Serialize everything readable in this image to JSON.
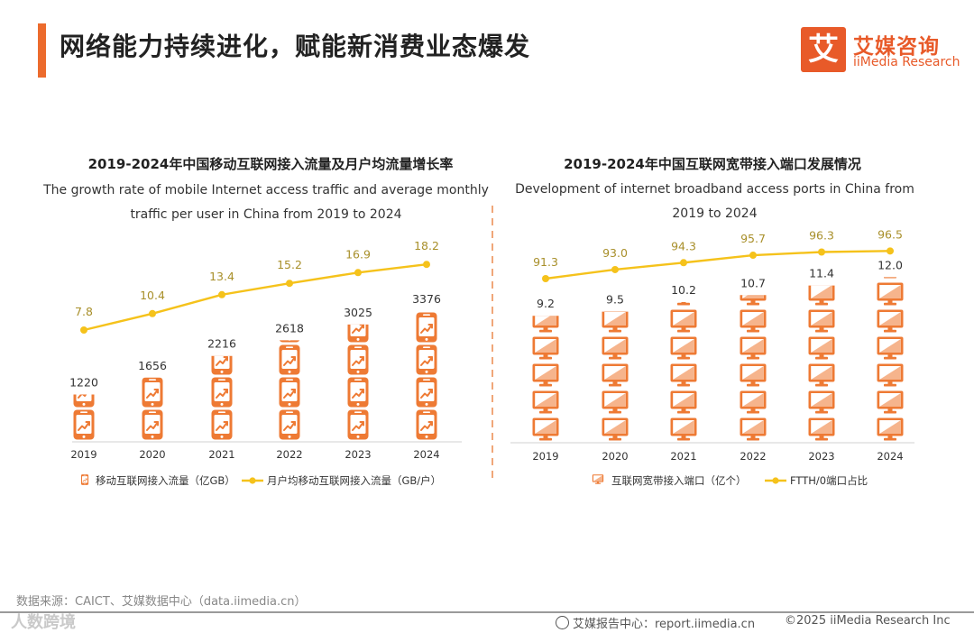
{
  "header": {
    "title": "网络能力持续进化，赋能新消费业态爆发",
    "logo_mark": "艾",
    "logo_cn": "艾媒咨询",
    "logo_en": "iiMedia Research"
  },
  "colors": {
    "accent": "#ec6b2d",
    "bar": "#ee7a34",
    "line": "#f5c21b",
    "line_label": "#a88f2a"
  },
  "chart_data": [
    {
      "type": "bar",
      "title": "2019-2024年中国移动互联网接入流量及月户均流量增长率",
      "subtitle_line1": "The growth rate of mobile Internet access traffic and average monthly",
      "subtitle_line2": "traffic per user in China from 2019 to 2024",
      "categories": [
        "2019",
        "2020",
        "2021",
        "2022",
        "2023",
        "2024"
      ],
      "series": [
        {
          "name": "移动互联网接入流量（亿GB）",
          "kind": "pictogram-bar",
          "icon": "phone-icon",
          "values": [
            1220,
            1656,
            2216,
            2618,
            3025,
            3376
          ],
          "labels": [
            "1220",
            "1656",
            "2216",
            "2618",
            "3025",
            "3376"
          ]
        },
        {
          "name": "月户均移动互联网接入流量（GB/户）",
          "kind": "line",
          "values": [
            7.8,
            10.4,
            13.4,
            15.2,
            16.9,
            18.2
          ],
          "labels": [
            "7.8",
            "10.4",
            "13.4",
            "15.2",
            "16.9",
            "18.2"
          ]
        }
      ]
    },
    {
      "type": "bar",
      "title": "2019-2024年中国互联网宽带接入端口发展情况",
      "subtitle_line1": "Development of internet broadband access ports in China from",
      "subtitle_line2": "2019 to 2024",
      "categories": [
        "2019",
        "2020",
        "2021",
        "2022",
        "2023",
        "2024"
      ],
      "series": [
        {
          "name": "互联网宽带接入端口（亿个）",
          "kind": "pictogram-bar",
          "icon": "monitor-icon",
          "values": [
            9.2,
            9.5,
            10.2,
            10.7,
            11.4,
            12.0
          ],
          "labels": [
            "9.2",
            "9.5",
            "10.2",
            "10.7",
            "11.4",
            "12.0"
          ]
        },
        {
          "name": "FTTH/0端口占比",
          "kind": "line",
          "values": [
            91.3,
            93.0,
            94.3,
            95.7,
            96.3,
            96.5
          ],
          "labels": [
            "91.3",
            "93.0",
            "94.3",
            "95.7",
            "96.3",
            "96.5"
          ]
        }
      ]
    }
  ],
  "footer": {
    "source": "数据来源：CAICT、艾媒数据中心（data.iimedia.cn）",
    "watermark": "人数跨境",
    "report_center": "艾媒报告中心：report.iimedia.cn",
    "copyright": "©2025  iiMedia Research  Inc"
  }
}
